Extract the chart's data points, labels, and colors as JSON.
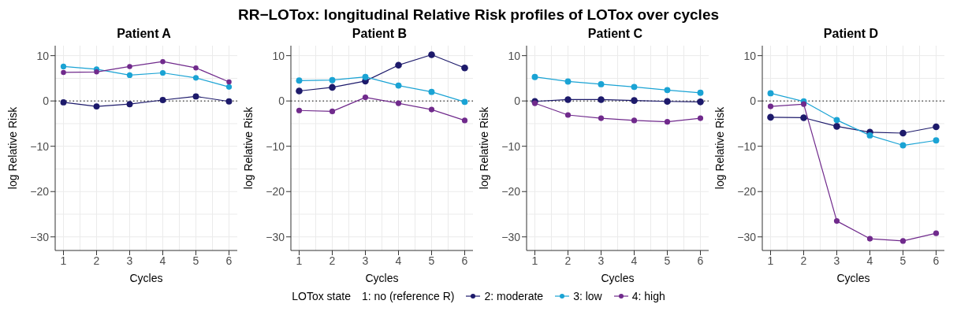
{
  "chart_data": [
    {
      "type": "line",
      "title": "RR−LOTox: longitudinal Relative Risk profiles of LOTox over cycles",
      "subtitle": "Patient A",
      "xlabel": "Cycles",
      "ylabel": "log Relative Risk",
      "x": [
        1,
        2,
        3,
        4,
        5,
        6
      ],
      "xlim": [
        0.75,
        6.25
      ],
      "xticks": [
        1,
        2,
        3,
        4,
        5,
        6
      ],
      "ylim": [
        -33,
        12.2
      ],
      "yticks": [
        -30,
        -20,
        -10,
        0,
        10
      ],
      "grid": true,
      "marker": "circle",
      "legend": "bottom",
      "legend_title": "LOTox state",
      "ref_lines": [
        {
          "axis": "y",
          "value": 0,
          "line_style": "dotted",
          "color": "#000000"
        }
      ],
      "series": [
        {
          "name": "1: no (reference R)",
          "values": [
            null,
            null,
            null,
            null,
            null,
            null
          ]
        },
        {
          "name": "2: moderate",
          "color": "#1d1a6b",
          "values": [
            -0.3,
            -1.2,
            -0.7,
            0.2,
            1.0,
            -0.1
          ]
        },
        {
          "name": "3: low",
          "color": "#1aa3d4",
          "values": [
            7.6,
            7.0,
            5.7,
            6.2,
            5.1,
            3.1
          ]
        },
        {
          "name": "4: high",
          "color": "#702a8c",
          "values": [
            6.3,
            6.4,
            7.6,
            8.7,
            7.3,
            4.2
          ]
        }
      ]
    },
    {
      "type": "line",
      "subtitle": "Patient B",
      "xlabel": "Cycles",
      "ylabel": "log Relative Risk",
      "x": [
        1,
        2,
        3,
        4,
        5,
        6
      ],
      "xlim": [
        0.75,
        6.25
      ],
      "xticks": [
        1,
        2,
        3,
        4,
        5,
        6
      ],
      "ylim": [
        -33,
        12.2
      ],
      "yticks": [
        -30,
        -20,
        -10,
        0,
        10
      ],
      "grid": true,
      "marker": "circle",
      "ref_lines": [
        {
          "axis": "y",
          "value": 0,
          "line_style": "dotted",
          "color": "#000000"
        }
      ],
      "series": [
        {
          "color": "#1d1a6b",
          "values": [
            2.2,
            3.0,
            4.4,
            7.9,
            10.2,
            7.3
          ]
        },
        {
          "color": "#1aa3d4",
          "values": [
            4.5,
            4.6,
            5.3,
            3.4,
            2.0,
            -0.2
          ]
        },
        {
          "color": "#702a8c",
          "values": [
            -2.1,
            -2.3,
            0.8,
            -0.5,
            -1.9,
            -4.3
          ]
        }
      ]
    },
    {
      "type": "line",
      "subtitle": "Patient C",
      "xlabel": "Cycles",
      "ylabel": "log Relative Risk",
      "x": [
        1,
        2,
        3,
        4,
        5,
        6
      ],
      "xlim": [
        0.75,
        6.25
      ],
      "xticks": [
        1,
        2,
        3,
        4,
        5,
        6
      ],
      "ylim": [
        -33,
        12.2
      ],
      "yticks": [
        -30,
        -20,
        -10,
        0,
        10
      ],
      "grid": true,
      "marker": "circle",
      "ref_lines": [
        {
          "axis": "y",
          "value": 0,
          "line_style": "dotted",
          "color": "#000000"
        }
      ],
      "series": [
        {
          "color": "#1d1a6b",
          "values": [
            -0.1,
            0.3,
            0.3,
            0.1,
            -0.1,
            -0.2
          ]
        },
        {
          "color": "#1aa3d4",
          "values": [
            5.3,
            4.3,
            3.7,
            3.1,
            2.4,
            1.8
          ]
        },
        {
          "color": "#702a8c",
          "values": [
            -0.5,
            -3.1,
            -3.8,
            -4.3,
            -4.6,
            -3.8
          ]
        }
      ]
    },
    {
      "type": "line",
      "subtitle": "Patient D",
      "xlabel": "Cycles",
      "ylabel": "log Relative Risk",
      "x": [
        1,
        2,
        3,
        4,
        5,
        6
      ],
      "xlim": [
        0.75,
        6.25
      ],
      "xticks": [
        1,
        2,
        3,
        4,
        5,
        6
      ],
      "ylim": [
        -33,
        12.2
      ],
      "yticks": [
        -30,
        -20,
        -10,
        0,
        10
      ],
      "grid": true,
      "marker": "circle",
      "ref_lines": [
        {
          "axis": "y",
          "value": 0,
          "line_style": "dotted",
          "color": "#000000"
        }
      ],
      "series": [
        {
          "color": "#1d1a6b",
          "values": [
            -3.6,
            -3.7,
            -5.6,
            -6.9,
            -7.1,
            -5.7
          ]
        },
        {
          "color": "#1aa3d4",
          "values": [
            1.7,
            -0.1,
            -4.2,
            -7.6,
            -9.8,
            -8.7
          ]
        },
        {
          "color": "#702a8c",
          "values": [
            -1.2,
            -0.7,
            -26.5,
            -30.4,
            -30.9,
            -29.2
          ]
        }
      ]
    }
  ]
}
